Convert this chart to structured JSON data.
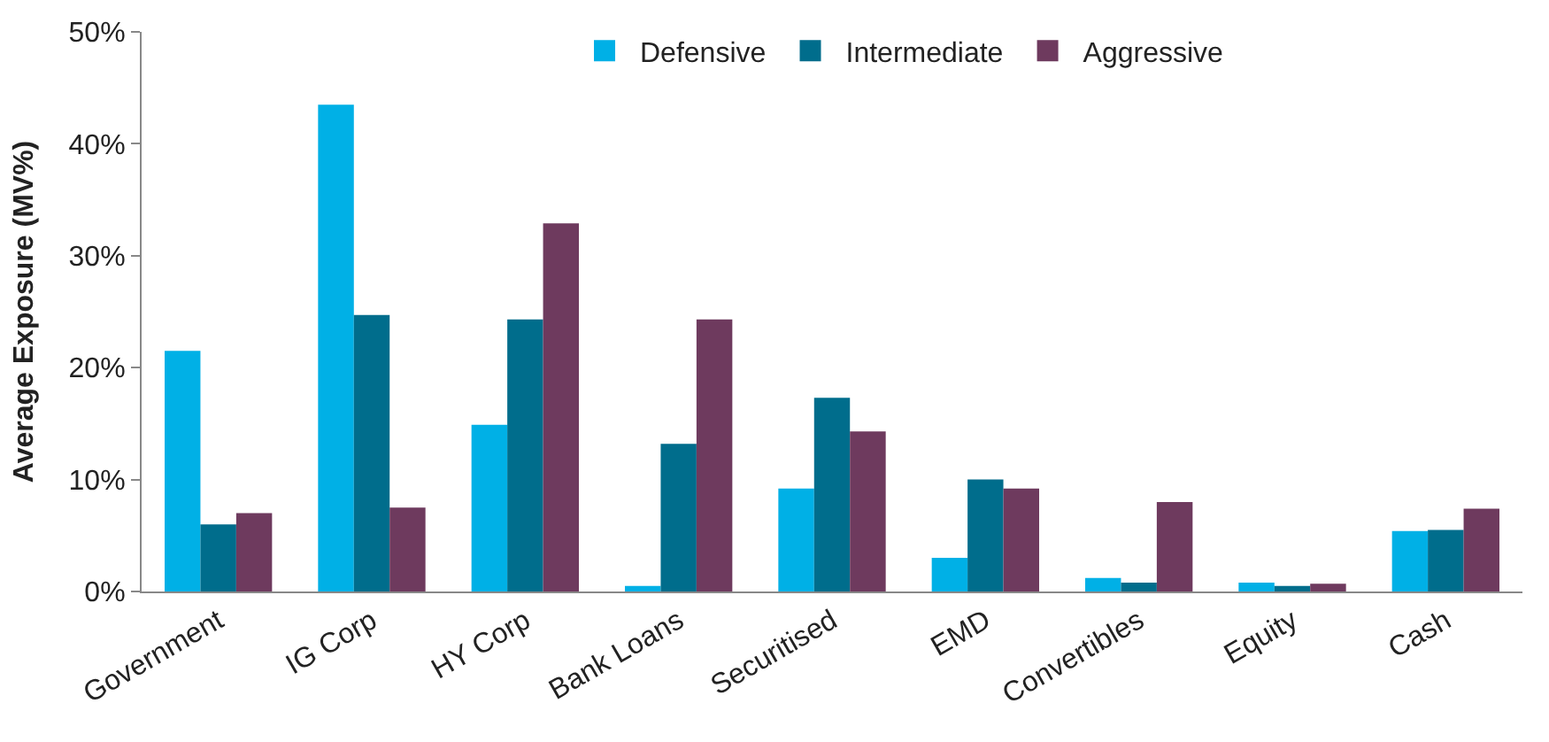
{
  "chart_data": {
    "type": "bar",
    "ylabel": "Average Exposure (MV%)",
    "categories": [
      "Government",
      "IG Corp",
      "HY Corp",
      "Bank Loans",
      "Securitised",
      "EMD",
      "Convertibles",
      "Equity",
      "Cash"
    ],
    "series": [
      {
        "name": "Defensive",
        "color": "#00b0e6",
        "values": [
          21.5,
          43.5,
          14.9,
          0.5,
          9.2,
          3.0,
          1.2,
          0.8,
          5.4
        ]
      },
      {
        "name": "Intermediate",
        "color": "#006d8c",
        "values": [
          6.0,
          24.7,
          24.3,
          13.2,
          17.3,
          10.0,
          0.8,
          0.5,
          5.5
        ]
      },
      {
        "name": "Aggressive",
        "color": "#6e3a5e",
        "values": [
          7.0,
          7.5,
          32.9,
          24.3,
          14.3,
          9.2,
          8.0,
          0.7,
          7.4
        ]
      }
    ],
    "ylim": [
      0,
      50
    ],
    "yticks": [
      {
        "value": 0,
        "label": "0%"
      },
      {
        "value": 10,
        "label": "10%"
      },
      {
        "value": 20,
        "label": "20%"
      },
      {
        "value": 30,
        "label": "30%"
      },
      {
        "value": 40,
        "label": "40%"
      },
      {
        "value": 50,
        "label": "50%"
      }
    ],
    "grid": false,
    "legend": "top"
  }
}
